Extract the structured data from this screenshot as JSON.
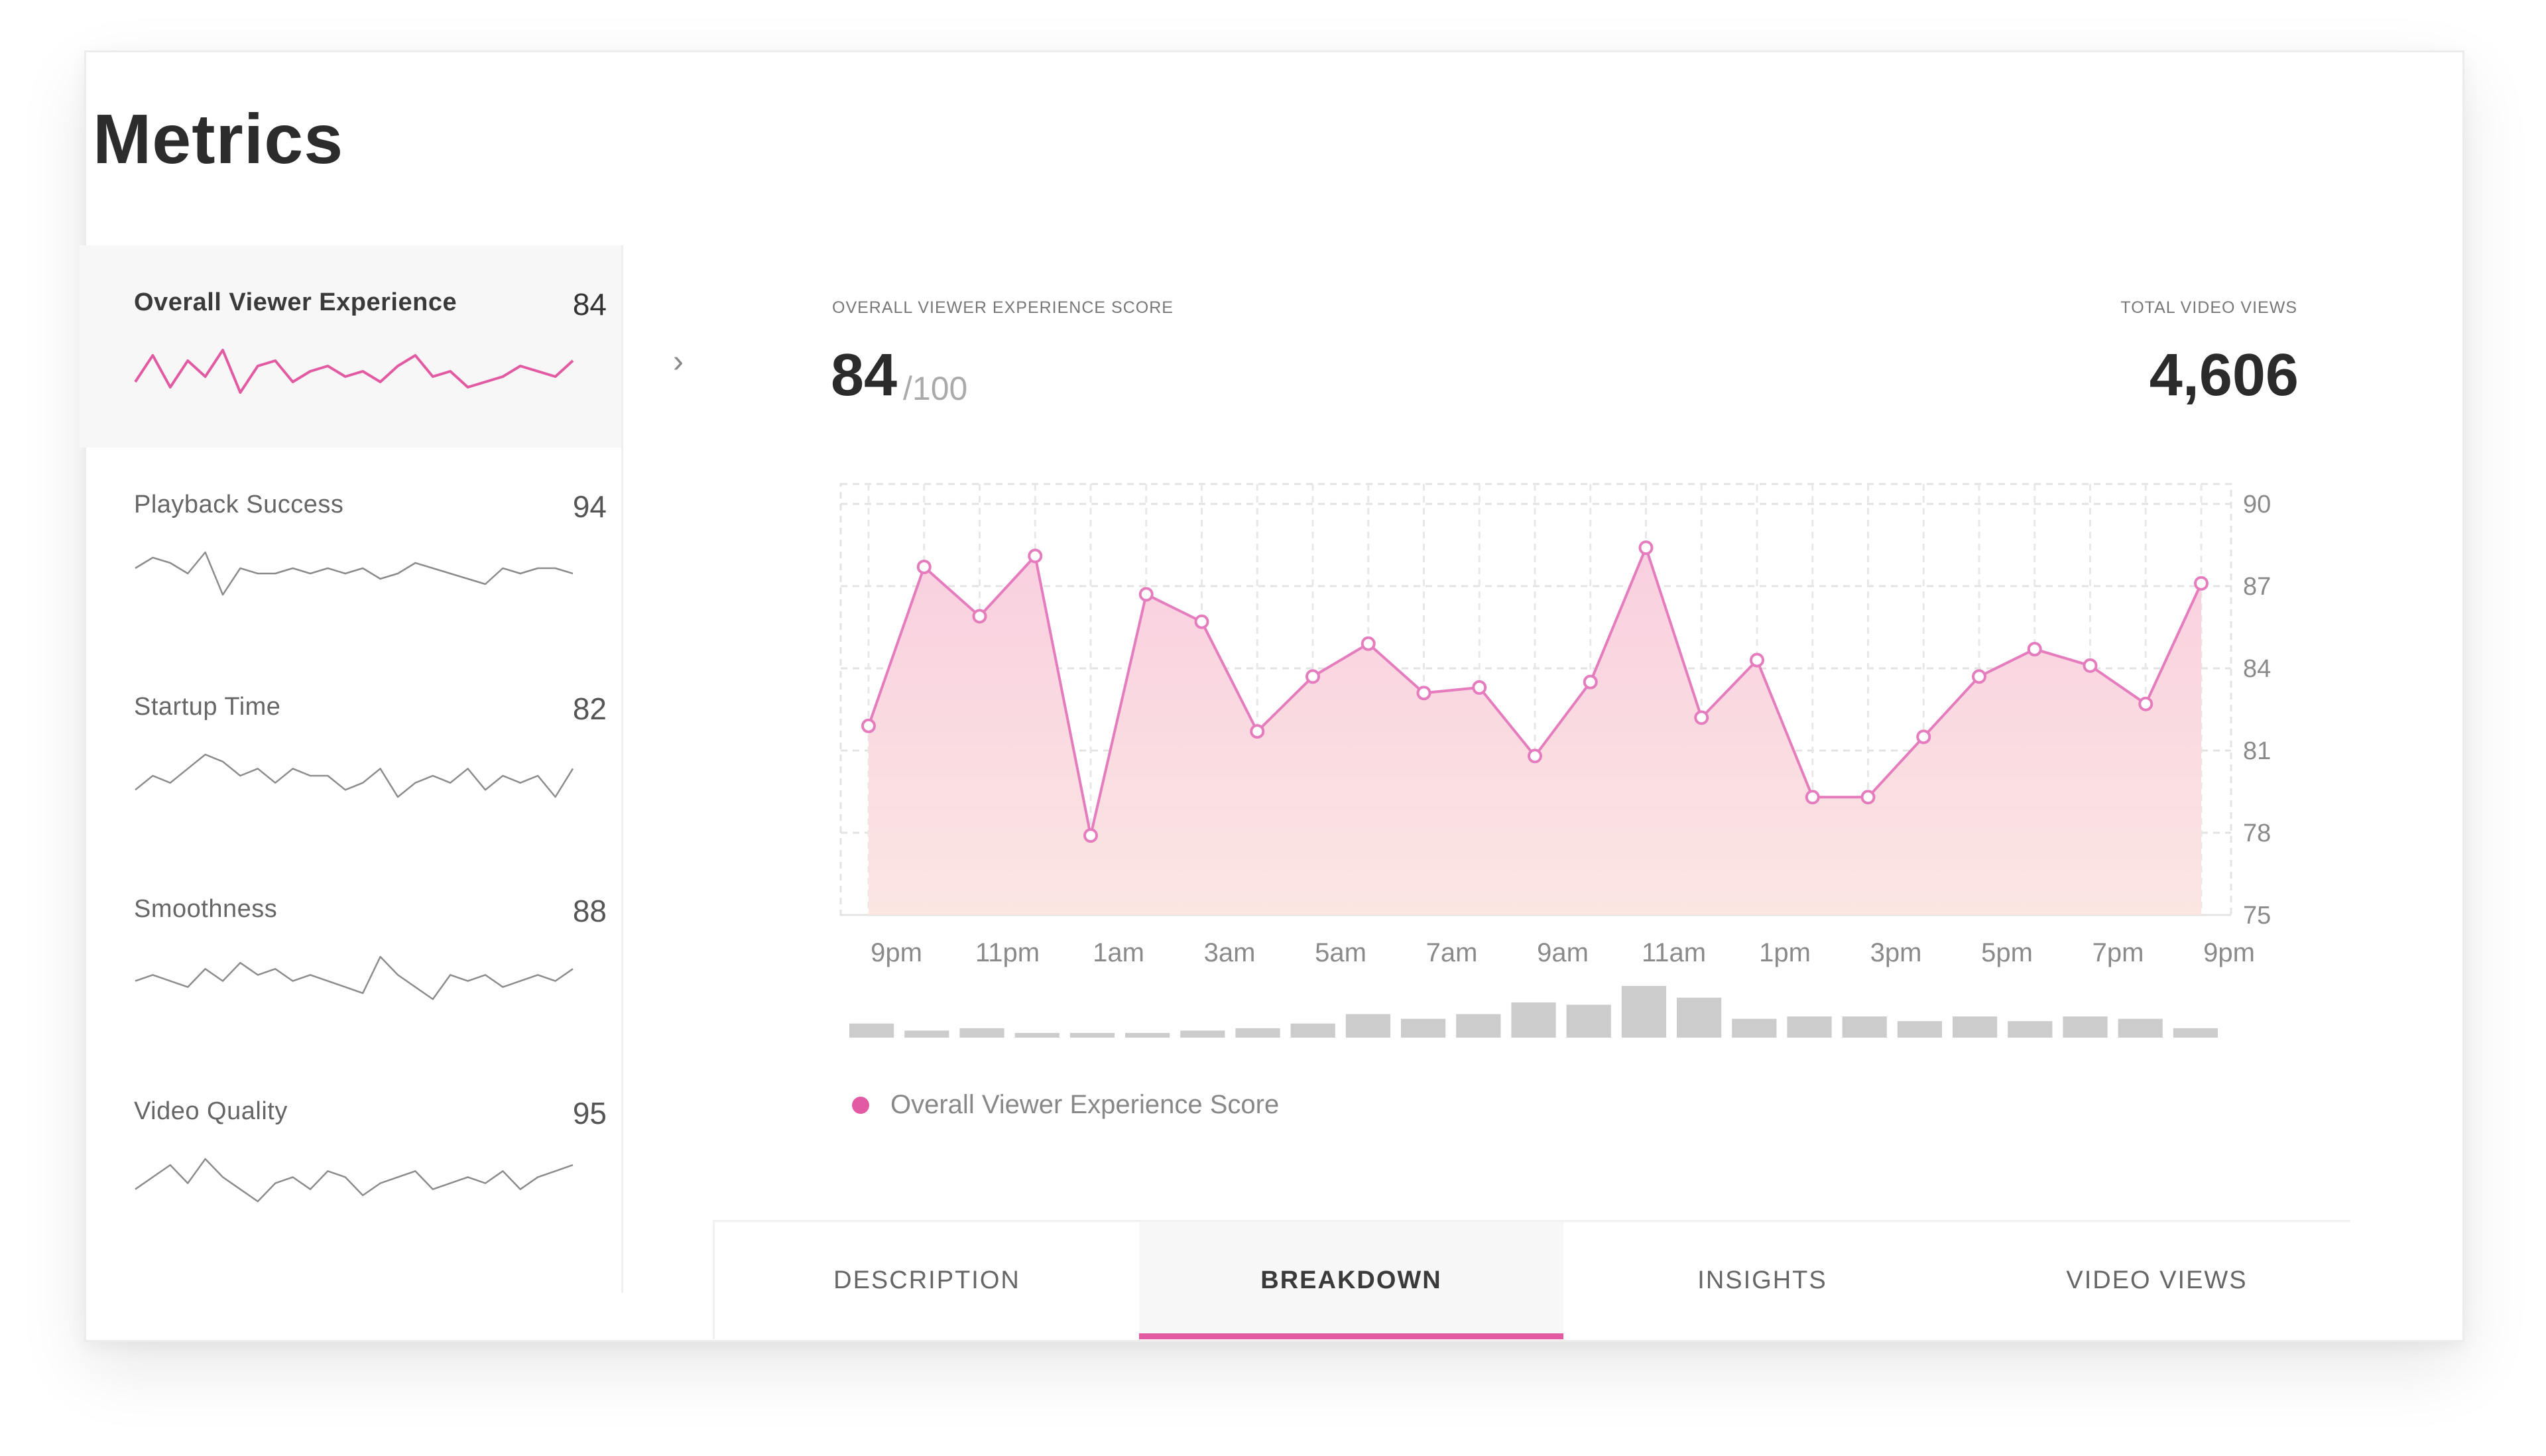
{
  "page_title": "Metrics",
  "metrics": [
    {
      "label": "Overall Viewer Experience",
      "value": "84",
      "active": true,
      "spark": [
        3,
        8,
        2,
        7,
        4,
        9,
        1,
        6,
        7,
        3,
        5,
        6,
        4,
        5,
        3,
        6,
        8,
        4,
        5,
        2,
        3,
        4,
        6,
        5,
        4,
        7
      ]
    },
    {
      "label": "Playback Success",
      "value": "94",
      "active": false,
      "spark": [
        6,
        8,
        7,
        5,
        9,
        1,
        6,
        5,
        5,
        6,
        5,
        6,
        5,
        6,
        4,
        5,
        7,
        6,
        5,
        4,
        3,
        6,
        5,
        6,
        6,
        5
      ]
    },
    {
      "label": "Startup Time",
      "value": "82",
      "active": false,
      "spark": [
        4,
        6,
        5,
        7,
        9,
        8,
        6,
        7,
        5,
        7,
        6,
        6,
        4,
        5,
        7,
        3,
        5,
        6,
        5,
        7,
        4,
        6,
        5,
        6,
        3,
        7
      ]
    },
    {
      "label": "Smoothness",
      "value": "88",
      "active": false,
      "spark": [
        5,
        6,
        5,
        4,
        7,
        5,
        8,
        6,
        7,
        5,
        6,
        5,
        4,
        3,
        9,
        6,
        4,
        2,
        6,
        5,
        6,
        4,
        5,
        6,
        5,
        7
      ]
    },
    {
      "label": "Video Quality",
      "value": "95",
      "active": false,
      "spark": [
        3,
        5,
        7,
        4,
        8,
        5,
        3,
        1,
        4,
        5,
        3,
        6,
        5,
        2,
        4,
        5,
        6,
        3,
        4,
        5,
        4,
        6,
        3,
        5,
        6,
        7
      ]
    }
  ],
  "score": {
    "caption": "OVERALL VIEWER EXPERIENCE SCORE",
    "value": "84",
    "denominator": "/100"
  },
  "views": {
    "caption": "TOTAL VIDEO VIEWS",
    "value": "4,606"
  },
  "chart_data": {
    "type": "area",
    "title": "",
    "xlabel": "",
    "ylabel": "",
    "ylim": [
      75,
      90
    ],
    "yticks": [
      90,
      87,
      84,
      81,
      78,
      75
    ],
    "xticks": [
      "9pm",
      "11pm",
      "1am",
      "3am",
      "5am",
      "7am",
      "9am",
      "11am",
      "1pm",
      "3pm",
      "5pm",
      "7pm",
      "9pm"
    ],
    "series": [
      {
        "name": "Overall Viewer Experience Score",
        "values": [
          81.9,
          87.7,
          85.9,
          88.1,
          77.9,
          86.7,
          85.7,
          81.7,
          83.7,
          84.9,
          83.1,
          83.3,
          80.8,
          83.5,
          88.4,
          82.2,
          84.3,
          79.3,
          79.3,
          81.5,
          83.7,
          84.7,
          84.1,
          82.7,
          87.1
        ]
      }
    ],
    "views_bars": [
      3,
      1.5,
      2,
      1,
      1,
      1,
      1.5,
      2,
      3,
      5,
      4,
      5,
      7.5,
      7,
      11,
      8.5,
      4,
      4.5,
      4.5,
      3.5,
      4.5,
      3.5,
      4.5,
      4,
      2
    ],
    "grid": true,
    "legend_position": "bottom-left",
    "colors": {
      "line": "#e57cbd",
      "fill_top": "#f9cfe0",
      "fill_bottom": "#fbe6e2",
      "bars": "#cccccc"
    }
  },
  "tabs": [
    {
      "label": "DESCRIPTION",
      "active": false
    },
    {
      "label": "BREAKDOWN",
      "active": true
    },
    {
      "label": "INSIGHTS",
      "active": false
    },
    {
      "label": "VIDEO VIEWS",
      "active": false
    }
  ],
  "colors": {
    "accent": "#e25aa1",
    "active_bg": "#f7f7f7",
    "spark_active": "#e25aa1",
    "spark_inactive": "#8c8c8c"
  },
  "icons": {
    "chevron": "›"
  }
}
